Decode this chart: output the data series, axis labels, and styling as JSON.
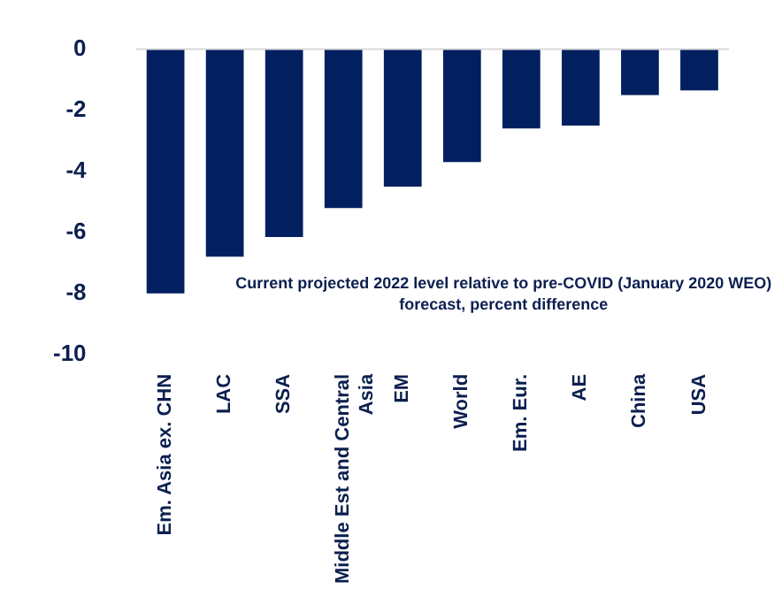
{
  "chart_data": {
    "type": "bar",
    "categories": [
      "Em. Asia ex. CHN",
      "LAC",
      "SSA",
      "Middle Est and Central Asia",
      "EM",
      "World",
      "Em. Eur.",
      "AE",
      "China",
      "USA"
    ],
    "values": [
      -8.0,
      -6.8,
      -6.15,
      -5.2,
      -4.5,
      -3.7,
      -2.6,
      -2.5,
      -1.5,
      -1.35
    ],
    "color": "#022060",
    "ylim": [
      -10,
      0
    ],
    "yticks": [
      -10,
      -8,
      -6,
      -4,
      -2,
      0
    ],
    "annotations": [
      "Current projected 2022 level relative to pre-COVID (January 2020 WEO) forecast, percent difference"
    ]
  }
}
